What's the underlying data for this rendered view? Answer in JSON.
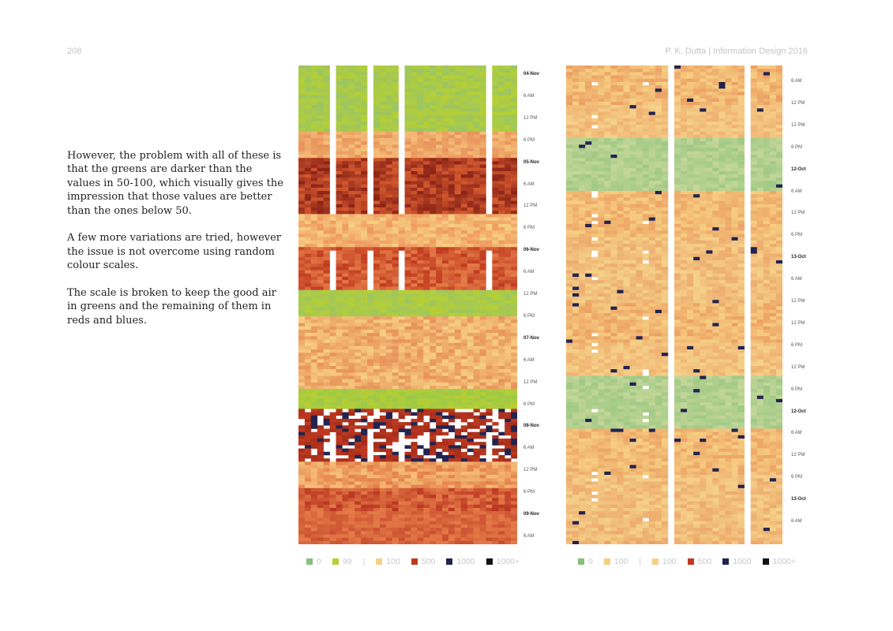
{
  "header": {
    "page_number": "208",
    "running_head": "P. K. Dutta | Information Design 2016"
  },
  "body": {
    "paragraphs": [
      "However, the problem with all of these is that the greens are darker than the values in 50-100, which visually gives the impression that those values are better than the ones below 50.",
      "A few more variations are tried, however the issue is not overcome using random colour scales.",
      "The scale is broken to keep the good air in greens and the remaining of them in reds and blues."
    ]
  },
  "heatmap_left": {
    "time_labels": [
      {
        "text": "04-Nov",
        "bold": true
      },
      {
        "text": "6 AM"
      },
      {
        "text": "12 PM"
      },
      {
        "text": "6 PM"
      },
      {
        "text": "05-Nov",
        "bold": true
      },
      {
        "text": "6 AM"
      },
      {
        "text": "12 PM"
      },
      {
        "text": "6 PM"
      },
      {
        "text": "06-Nov",
        "bold": true
      },
      {
        "text": "6 AM"
      },
      {
        "text": "12 PM"
      },
      {
        "text": "6 PM"
      },
      {
        "text": "07-Nov",
        "bold": true
      },
      {
        "text": "6 AM"
      },
      {
        "text": "12 PM"
      },
      {
        "text": "6 PM"
      },
      {
        "text": "08-Nov",
        "bold": true
      },
      {
        "text": "6 AM"
      },
      {
        "text": "12 PM"
      },
      {
        "text": "6 PM"
      },
      {
        "text": "09-Nov",
        "bold": true
      },
      {
        "text": "6 AM"
      }
    ],
    "legend": {
      "group1": [
        {
          "label": "0",
          "color": "#86c07a"
        },
        {
          "label": "99",
          "color": "#b6cf33"
        }
      ],
      "group2": [
        {
          "label": "100",
          "color": "#f7cf83"
        },
        {
          "label": "500",
          "color": "#c0391f"
        },
        {
          "label": "1000",
          "color": "#23234f"
        },
        {
          "label": "1000+",
          "color": "#111111"
        }
      ]
    }
  },
  "heatmap_right": {
    "time_labels": [
      {
        "text": "6 AM"
      },
      {
        "text": "12 PM"
      },
      {
        "text": "12 PM"
      },
      {
        "text": "6 PM"
      },
      {
        "text": "12-Oct",
        "bold": true
      },
      {
        "text": "6 AM"
      },
      {
        "text": "12 PM"
      },
      {
        "text": "6 PM"
      },
      {
        "text": "13-Oct",
        "bold": true
      },
      {
        "text": "6 AM"
      },
      {
        "text": "12 PM"
      },
      {
        "text": "12 PM"
      },
      {
        "text": "6 PM"
      },
      {
        "text": "12 PM"
      },
      {
        "text": "6 PM"
      },
      {
        "text": "12-Oct",
        "bold": true
      },
      {
        "text": "6 AM"
      },
      {
        "text": "12 PM"
      },
      {
        "text": "6 PM"
      },
      {
        "text": "13-Oct",
        "bold": true
      },
      {
        "text": "6 AM"
      }
    ],
    "legend": {
      "group1": [
        {
          "label": "0",
          "color": "#86c07a"
        },
        {
          "label": "100",
          "color": "#f7cf83"
        }
      ],
      "group2": [
        {
          "label": "100",
          "color": "#f7cf83"
        },
        {
          "label": "500",
          "color": "#c0391f"
        },
        {
          "label": "1000",
          "color": "#23234f"
        },
        {
          "label": "1000+",
          "color": "#111111"
        }
      ]
    }
  },
  "legend_separator": "|"
}
